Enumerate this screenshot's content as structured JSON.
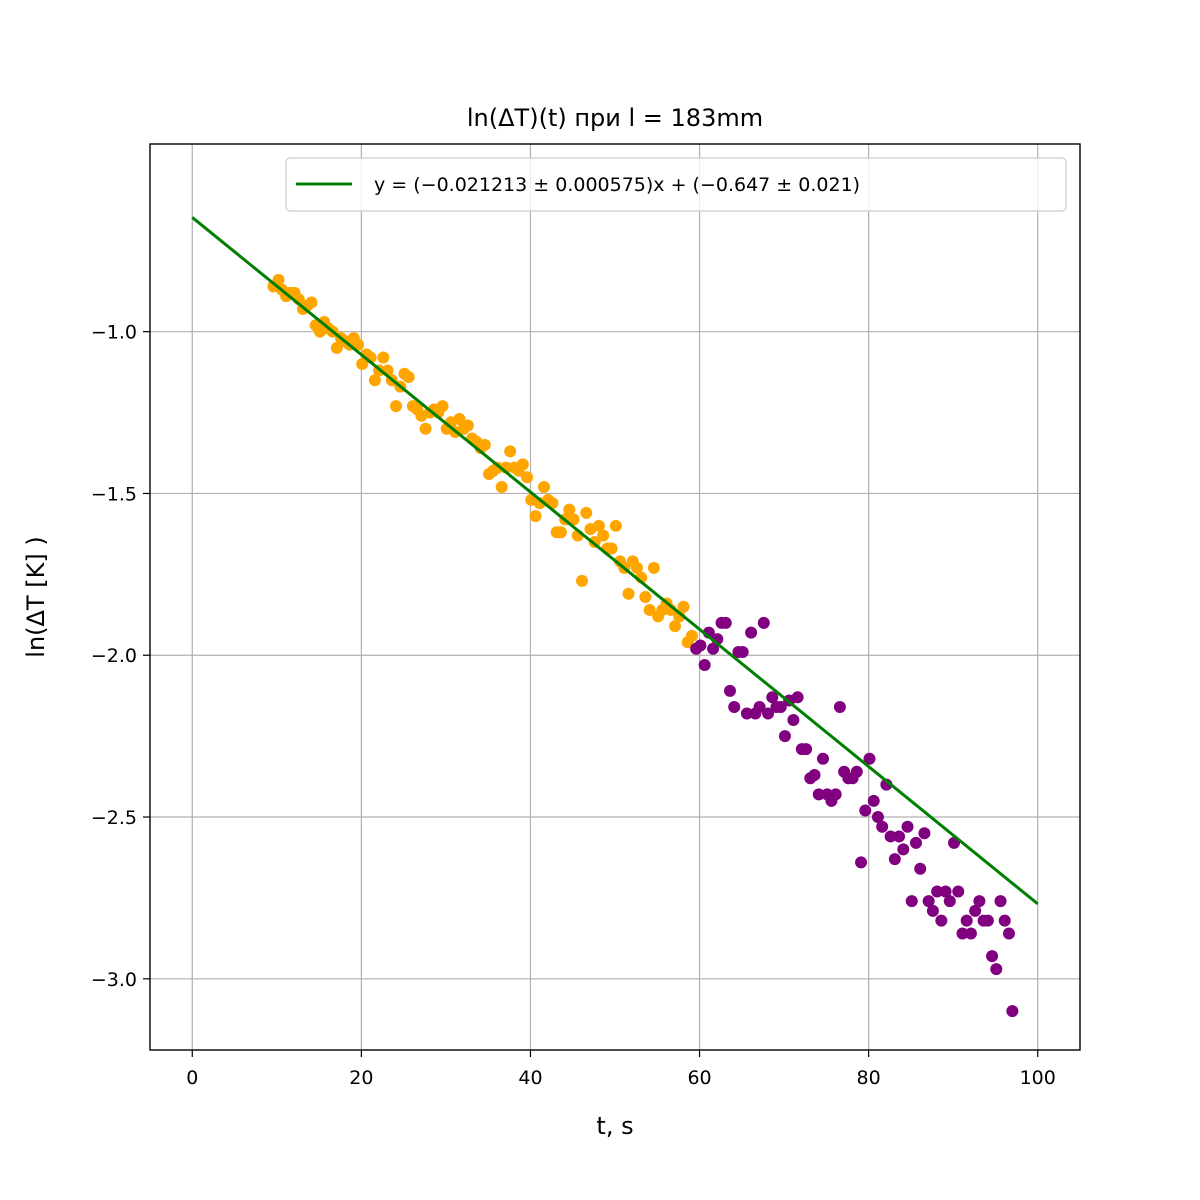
{
  "chart_data": {
    "type": "scatter",
    "title": "ln(ΔT)(t) при l = 183mm",
    "xlabel": "t, s",
    "ylabel": "ln(ΔT [K] )",
    "xlim": [
      -5,
      105
    ],
    "ylim": [
      -3.22,
      -0.42
    ],
    "xticks": [
      0,
      20,
      40,
      60,
      80,
      100
    ],
    "yticks": [
      -1.0,
      -1.5,
      -2.0,
      -2.5,
      -3.0
    ],
    "xtick_labels": [
      "0",
      "20",
      "40",
      "60",
      "80",
      "100"
    ],
    "ytick_labels": [
      "−1.0",
      "−1.5",
      "−2.0",
      "−2.5",
      "−3.0"
    ],
    "grid": true,
    "legend_position": "top-right",
    "fit_line": {
      "label": "y = (−0.021213 ± 0.000575)x + (−0.647 ± 0.021)",
      "slope": -0.021213,
      "intercept": -0.647,
      "x_range": [
        0,
        100
      ],
      "color": "#008000"
    },
    "series": [
      {
        "color": "#ffa500",
        "points": [
          [
            9.6,
            -0.86
          ],
          [
            10.2,
            -0.84
          ],
          [
            10.6,
            -0.87
          ],
          [
            11.1,
            -0.89
          ],
          [
            11.6,
            -0.88
          ],
          [
            12.1,
            -0.88
          ],
          [
            12.6,
            -0.9
          ],
          [
            13.1,
            -0.93
          ],
          [
            13.6,
            -0.92
          ],
          [
            14.1,
            -0.91
          ],
          [
            14.6,
            -0.98
          ],
          [
            15.1,
            -1.0
          ],
          [
            15.6,
            -0.97
          ],
          [
            16.1,
            -0.99
          ],
          [
            16.6,
            -1.0
          ],
          [
            17.1,
            -1.05
          ],
          [
            17.6,
            -1.02
          ],
          [
            18.1,
            -1.03
          ],
          [
            18.6,
            -1.04
          ],
          [
            19.1,
            -1.02
          ],
          [
            19.6,
            -1.04
          ],
          [
            20.1,
            -1.1
          ],
          [
            20.6,
            -1.07
          ],
          [
            21.1,
            -1.08
          ],
          [
            21.6,
            -1.15
          ],
          [
            22.1,
            -1.12
          ],
          [
            22.6,
            -1.08
          ],
          [
            23.1,
            -1.12
          ],
          [
            23.6,
            -1.15
          ],
          [
            24.1,
            -1.23
          ],
          [
            24.6,
            -1.17
          ],
          [
            25.1,
            -1.13
          ],
          [
            25.6,
            -1.14
          ],
          [
            26.1,
            -1.23
          ],
          [
            26.6,
            -1.24
          ],
          [
            27.1,
            -1.26
          ],
          [
            27.6,
            -1.3
          ],
          [
            28.1,
            -1.25
          ],
          [
            28.6,
            -1.24
          ],
          [
            29.1,
            -1.25
          ],
          [
            29.6,
            -1.23
          ],
          [
            30.1,
            -1.3
          ],
          [
            30.6,
            -1.28
          ],
          [
            31.1,
            -1.31
          ],
          [
            31.6,
            -1.27
          ],
          [
            32.1,
            -1.3
          ],
          [
            32.6,
            -1.29
          ],
          [
            33.1,
            -1.33
          ],
          [
            33.6,
            -1.34
          ],
          [
            34.1,
            -1.36
          ],
          [
            34.6,
            -1.35
          ],
          [
            35.1,
            -1.44
          ],
          [
            35.6,
            -1.43
          ],
          [
            36.1,
            -1.42
          ],
          [
            36.6,
            -1.48
          ],
          [
            37.1,
            -1.42
          ],
          [
            37.6,
            -1.37
          ],
          [
            38.1,
            -1.42
          ],
          [
            38.6,
            -1.43
          ],
          [
            39.1,
            -1.41
          ],
          [
            39.6,
            -1.45
          ],
          [
            40.1,
            -1.52
          ],
          [
            40.6,
            -1.57
          ],
          [
            41.1,
            -1.53
          ],
          [
            41.6,
            -1.48
          ],
          [
            42.1,
            -1.52
          ],
          [
            42.6,
            -1.53
          ],
          [
            43.1,
            -1.62
          ],
          [
            43.6,
            -1.62
          ],
          [
            44.1,
            -1.58
          ],
          [
            44.6,
            -1.55
          ],
          [
            45.1,
            -1.58
          ],
          [
            45.6,
            -1.63
          ],
          [
            46.1,
            -1.77
          ],
          [
            46.6,
            -1.56
          ],
          [
            47.1,
            -1.61
          ],
          [
            47.6,
            -1.65
          ],
          [
            48.1,
            -1.6
          ],
          [
            48.6,
            -1.63
          ],
          [
            49.1,
            -1.67
          ],
          [
            49.6,
            -1.67
          ],
          [
            50.1,
            -1.6
          ],
          [
            50.6,
            -1.71
          ],
          [
            51.1,
            -1.73
          ],
          [
            51.6,
            -1.81
          ],
          [
            52.1,
            -1.71
          ],
          [
            52.6,
            -1.73
          ],
          [
            53.1,
            -1.76
          ],
          [
            53.6,
            -1.82
          ],
          [
            54.1,
            -1.86
          ],
          [
            54.6,
            -1.73
          ],
          [
            55.1,
            -1.88
          ],
          [
            55.6,
            -1.86
          ],
          [
            56.1,
            -1.84
          ],
          [
            56.6,
            -1.86
          ],
          [
            57.1,
            -1.91
          ],
          [
            57.6,
            -1.88
          ],
          [
            58.1,
            -1.85
          ],
          [
            58.6,
            -1.96
          ],
          [
            59.1,
            -1.94
          ]
        ]
      },
      {
        "color": "#800080",
        "points": [
          [
            59.6,
            -1.98
          ],
          [
            60.1,
            -1.97
          ],
          [
            60.6,
            -2.03
          ],
          [
            61.1,
            -1.93
          ],
          [
            61.6,
            -1.98
          ],
          [
            62.1,
            -1.95
          ],
          [
            62.6,
            -1.9
          ],
          [
            63.1,
            -1.9
          ],
          [
            63.6,
            -2.11
          ],
          [
            64.1,
            -2.16
          ],
          [
            64.6,
            -1.99
          ],
          [
            65.1,
            -1.99
          ],
          [
            65.6,
            -2.18
          ],
          [
            66.1,
            -1.93
          ],
          [
            66.6,
            -2.18
          ],
          [
            67.1,
            -2.16
          ],
          [
            67.6,
            -1.9
          ],
          [
            68.1,
            -2.18
          ],
          [
            68.6,
            -2.13
          ],
          [
            69.1,
            -2.16
          ],
          [
            69.6,
            -2.16
          ],
          [
            70.1,
            -2.25
          ],
          [
            70.6,
            -2.14
          ],
          [
            71.1,
            -2.2
          ],
          [
            71.6,
            -2.13
          ],
          [
            72.1,
            -2.29
          ],
          [
            72.6,
            -2.29
          ],
          [
            73.1,
            -2.38
          ],
          [
            73.6,
            -2.37
          ],
          [
            74.1,
            -2.43
          ],
          [
            74.6,
            -2.32
          ],
          [
            75.1,
            -2.43
          ],
          [
            75.6,
            -2.45
          ],
          [
            76.1,
            -2.43
          ],
          [
            76.6,
            -2.16
          ],
          [
            77.1,
            -2.36
          ],
          [
            77.6,
            -2.38
          ],
          [
            78.1,
            -2.38
          ],
          [
            78.6,
            -2.36
          ],
          [
            79.1,
            -2.64
          ],
          [
            79.6,
            -2.48
          ],
          [
            80.1,
            -2.32
          ],
          [
            80.6,
            -2.45
          ],
          [
            81.1,
            -2.5
          ],
          [
            81.6,
            -2.53
          ],
          [
            82.1,
            -2.4
          ],
          [
            82.6,
            -2.56
          ],
          [
            83.1,
            -2.63
          ],
          [
            83.6,
            -2.56
          ],
          [
            84.1,
            -2.6
          ],
          [
            84.6,
            -2.53
          ],
          [
            85.1,
            -2.76
          ],
          [
            85.6,
            -2.58
          ],
          [
            86.1,
            -2.66
          ],
          [
            86.6,
            -2.55
          ],
          [
            87.1,
            -2.76
          ],
          [
            87.6,
            -2.79
          ],
          [
            88.1,
            -2.73
          ],
          [
            88.6,
            -2.82
          ],
          [
            89.1,
            -2.73
          ],
          [
            89.6,
            -2.76
          ],
          [
            90.1,
            -2.58
          ],
          [
            90.6,
            -2.73
          ],
          [
            91.1,
            -2.86
          ],
          [
            91.6,
            -2.82
          ],
          [
            92.1,
            -2.86
          ],
          [
            92.6,
            -2.79
          ],
          [
            93.1,
            -2.76
          ],
          [
            93.6,
            -2.82
          ],
          [
            94.1,
            -2.82
          ],
          [
            94.6,
            -2.93
          ],
          [
            95.1,
            -2.97
          ],
          [
            95.6,
            -2.76
          ],
          [
            96.1,
            -2.82
          ],
          [
            96.6,
            -2.86
          ],
          [
            97.0,
            -3.1
          ]
        ]
      }
    ]
  }
}
